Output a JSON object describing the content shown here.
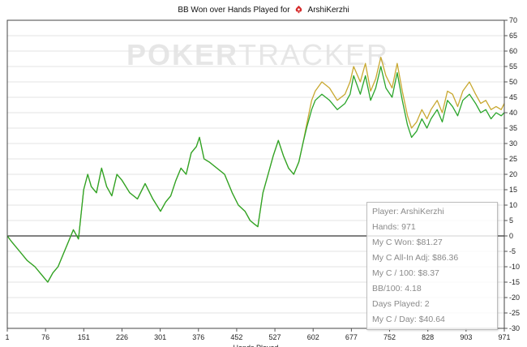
{
  "header": {
    "title_prefix": "BB Won over Hands Played for",
    "player_name": "ArshiKerzhi"
  },
  "watermark": {
    "part1": "POKER",
    "part2": "TRACKER"
  },
  "colors": {
    "won_line": "#2aa52a",
    "allin_line": "#c8a830",
    "zero_line": "#000000",
    "grid": "#e3e3e3"
  },
  "stats": {
    "player": "Player: ArshiKerzhi",
    "hands": "Hands: 971",
    "won": "My C Won: $81.27",
    "allin_adj": "My C All-In Adj: $86.36",
    "per_100": "My C / 100: $8.37",
    "bb_100": "BB/100: 4.18",
    "days_played": "Days Played: 2",
    "per_day": "My C / Day: $40.64"
  },
  "chart_data": {
    "type": "line",
    "title": "BB Won over Hands Played for ArshiKerzhi",
    "xlabel": "Hands Played",
    "ylabel": "",
    "xlim": [
      1,
      971
    ],
    "ylim": [
      -30,
      70
    ],
    "x_ticks": [
      "1",
      "76",
      "151",
      "226",
      "301",
      "376",
      "452",
      "527",
      "602",
      "677",
      "752",
      "828",
      "903",
      "971"
    ],
    "y_ticks": [
      "70",
      "65",
      "60",
      "55",
      "50",
      "45",
      "40",
      "35",
      "30",
      "25",
      "20",
      "15",
      "10",
      "5",
      "0",
      "-5",
      "-10",
      "-15",
      "-20",
      "-25",
      "-30"
    ],
    "y_axis_position": "right",
    "grid": true,
    "series": [
      {
        "key": "won",
        "x": [
          1,
          10,
          25,
          40,
          55,
          70,
          80,
          90,
          100,
          110,
          120,
          130,
          140,
          150,
          158,
          165,
          175,
          185,
          195,
          205,
          215,
          225,
          240,
          255,
          270,
          285,
          300,
          310,
          320,
          330,
          340,
          350,
          360,
          370,
          376,
          385,
          395,
          410,
          425,
          440,
          452,
          465,
          475,
          482,
          490,
          500,
          510,
          520,
          530,
          540,
          550,
          560,
          570,
          578,
          585,
          595,
          602,
          615,
          630,
          645,
          660,
          670,
          677,
          690,
          700,
          710,
          720,
          730,
          740,
          752,
          762,
          772,
          782,
          790,
          800,
          810,
          820,
          828,
          840,
          850,
          860,
          870,
          880,
          890,
          903,
          915,
          925,
          935,
          945,
          955,
          965,
          971
        ],
        "values": [
          0,
          -2,
          -5,
          -8,
          -10,
          -13,
          -15,
          -12,
          -10,
          -6,
          -2,
          2,
          -1,
          15,
          20,
          16,
          14,
          22,
          16,
          13,
          20,
          18,
          14,
          12,
          17,
          12,
          8,
          11,
          13,
          18,
          22,
          20,
          27,
          29,
          32,
          25,
          24,
          22,
          20,
          14,
          10,
          8,
          5,
          4,
          3,
          14,
          20,
          26,
          31,
          26,
          22,
          20,
          24,
          30,
          35,
          41,
          44,
          46,
          44,
          41,
          43,
          46,
          52,
          46,
          52,
          44,
          48,
          55,
          48,
          45,
          53,
          44,
          36,
          32,
          34,
          38,
          35,
          38,
          41,
          37,
          44,
          42,
          39,
          44,
          46,
          43,
          40,
          41,
          38,
          40,
          39,
          40
        ]
      },
      {
        "key": "allin",
        "x": [
          1,
          10,
          25,
          40,
          55,
          70,
          80,
          90,
          100,
          110,
          120,
          130,
          140,
          150,
          158,
          165,
          175,
          185,
          195,
          205,
          215,
          225,
          240,
          255,
          270,
          285,
          300,
          310,
          320,
          330,
          340,
          350,
          360,
          370,
          376,
          385,
          395,
          410,
          425,
          440,
          452,
          465,
          475,
          482,
          490,
          500,
          510,
          520,
          530,
          540,
          550,
          560,
          570,
          578,
          585,
          595,
          602,
          615,
          630,
          645,
          660,
          670,
          677,
          690,
          700,
          710,
          720,
          730,
          740,
          752,
          762,
          772,
          782,
          790,
          800,
          810,
          820,
          828,
          840,
          850,
          860,
          870,
          880,
          890,
          903,
          915,
          925,
          935,
          945,
          955,
          965,
          971
        ],
        "values": [
          0,
          -2,
          -5,
          -8,
          -10,
          -13,
          -15,
          -12,
          -10,
          -6,
          -2,
          2,
          -1,
          15,
          20,
          16,
          14,
          22,
          16,
          13,
          20,
          18,
          14,
          12,
          17,
          12,
          8,
          11,
          13,
          18,
          22,
          20,
          27,
          29,
          32,
          25,
          24,
          22,
          20,
          14,
          10,
          8,
          5,
          4,
          3,
          14,
          20,
          26,
          31,
          26,
          22,
          20,
          24,
          30,
          36,
          44,
          47,
          50,
          48,
          44,
          46,
          50,
          55,
          50,
          56,
          47,
          51,
          58,
          52,
          48,
          56,
          47,
          39,
          35,
          37,
          41,
          38,
          41,
          44,
          40,
          47,
          46,
          42,
          47,
          50,
          46,
          43,
          44,
          41,
          42,
          41,
          43
        ]
      }
    ]
  }
}
